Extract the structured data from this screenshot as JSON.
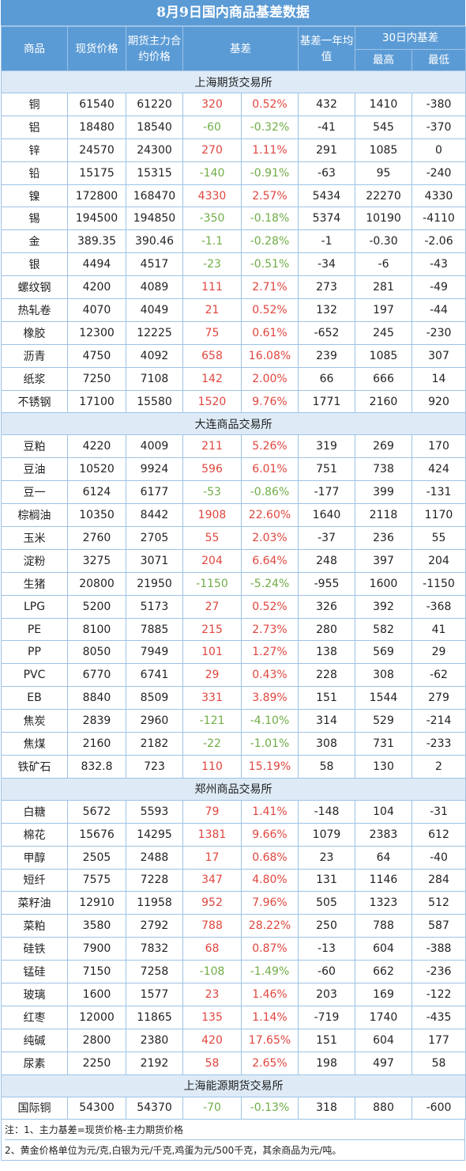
{
  "title": "8月9日国内商品基差数据",
  "headers": {
    "commodity": "商品",
    "spot": "现货价格",
    "futures": "期货主力合约价格",
    "basis": "基差",
    "basis_year_avg": "基差一年均值",
    "basis_30d": "30日内基差",
    "high": "最高",
    "low": "最低"
  },
  "sections": [
    {
      "name": "上海期货交易所",
      "rows": [
        [
          "铜",
          "61540",
          "61220",
          "320",
          "0.52%",
          "432",
          "1410",
          "-380"
        ],
        [
          "铝",
          "18480",
          "18540",
          "-60",
          "-0.32%",
          "-41",
          "545",
          "-370"
        ],
        [
          "锌",
          "24570",
          "24300",
          "270",
          "1.11%",
          "291",
          "1085",
          "0"
        ],
        [
          "铅",
          "15175",
          "15315",
          "-140",
          "-0.91%",
          "-63",
          "95",
          "-240"
        ],
        [
          "镍",
          "172800",
          "168470",
          "4330",
          "2.57%",
          "5434",
          "22270",
          "4330"
        ],
        [
          "锡",
          "194500",
          "194850",
          "-350",
          "-0.18%",
          "5374",
          "10190",
          "-4110"
        ],
        [
          "金",
          "389.35",
          "390.46",
          "-1.1",
          "-0.28%",
          "-1",
          "-0.30",
          "-2.06"
        ],
        [
          "银",
          "4494",
          "4517",
          "-23",
          "-0.51%",
          "-34",
          "-6",
          "-43"
        ],
        [
          "螺纹钢",
          "4200",
          "4089",
          "111",
          "2.71%",
          "273",
          "281",
          "-49"
        ],
        [
          "热轧卷",
          "4070",
          "4049",
          "21",
          "0.52%",
          "132",
          "197",
          "-44"
        ],
        [
          "橡胶",
          "12300",
          "12225",
          "75",
          "0.61%",
          "-652",
          "245",
          "-230"
        ],
        [
          "沥青",
          "4750",
          "4092",
          "658",
          "16.08%",
          "239",
          "1085",
          "307"
        ],
        [
          "纸浆",
          "7250",
          "7108",
          "142",
          "2.00%",
          "66",
          "666",
          "14"
        ],
        [
          "不锈钢",
          "17100",
          "15580",
          "1520",
          "9.76%",
          "1771",
          "2160",
          "920"
        ]
      ]
    },
    {
      "name": "大连商品交易所",
      "rows": [
        [
          "豆粕",
          "4220",
          "4009",
          "211",
          "5.26%",
          "319",
          "269",
          "170"
        ],
        [
          "豆油",
          "10520",
          "9924",
          "596",
          "6.01%",
          "751",
          "738",
          "424"
        ],
        [
          "豆一",
          "6124",
          "6177",
          "-53",
          "-0.86%",
          "-177",
          "399",
          "-131"
        ],
        [
          "棕榈油",
          "10350",
          "8442",
          "1908",
          "22.60%",
          "1640",
          "2118",
          "1170"
        ],
        [
          "玉米",
          "2760",
          "2705",
          "55",
          "2.03%",
          "-37",
          "236",
          "55"
        ],
        [
          "淀粉",
          "3275",
          "3071",
          "204",
          "6.64%",
          "248",
          "397",
          "204"
        ],
        [
          "生猪",
          "20800",
          "21950",
          "-1150",
          "-5.24%",
          "-955",
          "1600",
          "-1150"
        ],
        [
          "LPG",
          "5200",
          "5173",
          "27",
          "0.52%",
          "326",
          "392",
          "-368"
        ],
        [
          "PE",
          "8100",
          "7885",
          "215",
          "2.73%",
          "280",
          "582",
          "41"
        ],
        [
          "PP",
          "8050",
          "7949",
          "101",
          "1.27%",
          "138",
          "569",
          "29"
        ],
        [
          "PVC",
          "6770",
          "6741",
          "29",
          "0.43%",
          "228",
          "308",
          "-62"
        ],
        [
          "EB",
          "8840",
          "8509",
          "331",
          "3.89%",
          "151",
          "1544",
          "279"
        ],
        [
          "焦炭",
          "2839",
          "2960",
          "-121",
          "-4.10%",
          "314",
          "529",
          "-214"
        ],
        [
          "焦煤",
          "2160",
          "2182",
          "-22",
          "-1.01%",
          "308",
          "731",
          "-233"
        ],
        [
          "铁矿石",
          "832.8",
          "723",
          "110",
          "15.19%",
          "58",
          "130",
          "2"
        ]
      ]
    },
    {
      "name": "郑州商品交易所",
      "rows": [
        [
          "白糖",
          "5672",
          "5593",
          "79",
          "1.41%",
          "-148",
          "104",
          "-31"
        ],
        [
          "棉花",
          "15676",
          "14295",
          "1381",
          "9.66%",
          "1079",
          "2383",
          "612"
        ],
        [
          "甲醇",
          "2505",
          "2488",
          "17",
          "0.68%",
          "23",
          "64",
          "-40"
        ],
        [
          "短纤",
          "7575",
          "7228",
          "347",
          "4.80%",
          "131",
          "1146",
          "284"
        ],
        [
          "菜籽油",
          "12910",
          "11958",
          "952",
          "7.96%",
          "505",
          "1323",
          "512"
        ],
        [
          "菜粕",
          "3580",
          "2792",
          "788",
          "28.22%",
          "250",
          "788",
          "587"
        ],
        [
          "硅铁",
          "7900",
          "7832",
          "68",
          "0.87%",
          "-13",
          "604",
          "-388"
        ],
        [
          "锰硅",
          "7150",
          "7258",
          "-108",
          "-1.49%",
          "-60",
          "662",
          "-236"
        ],
        [
          "玻璃",
          "1600",
          "1577",
          "23",
          "1.46%",
          "203",
          "169",
          "-122"
        ],
        [
          "红枣",
          "12000",
          "11865",
          "135",
          "1.14%",
          "-719",
          "1740",
          "-435"
        ],
        [
          "纯碱",
          "2800",
          "2380",
          "420",
          "17.65%",
          "151",
          "604",
          "177"
        ],
        [
          "尿素",
          "2250",
          "2192",
          "58",
          "2.65%",
          "198",
          "497",
          "58"
        ]
      ]
    },
    {
      "name": "上海能源期货交易所",
      "rows": [
        [
          "国际铜",
          "54300",
          "54370",
          "-70",
          "-0.13%",
          "318",
          "880",
          "-600"
        ]
      ]
    }
  ],
  "notes": [
    "注：1、主力基差=现货价格-主力期货价格",
    "2、黄金价格单位为元/克,白银为元/千克,鸡蛋为元/500千克，其余商品为元/吨。"
  ],
  "colors": {
    "header_bg": "#5b9bd5",
    "section_bg": "#deebf7",
    "border": "#9dc3e6",
    "positive": "#e0463e",
    "negative": "#70ad47"
  }
}
